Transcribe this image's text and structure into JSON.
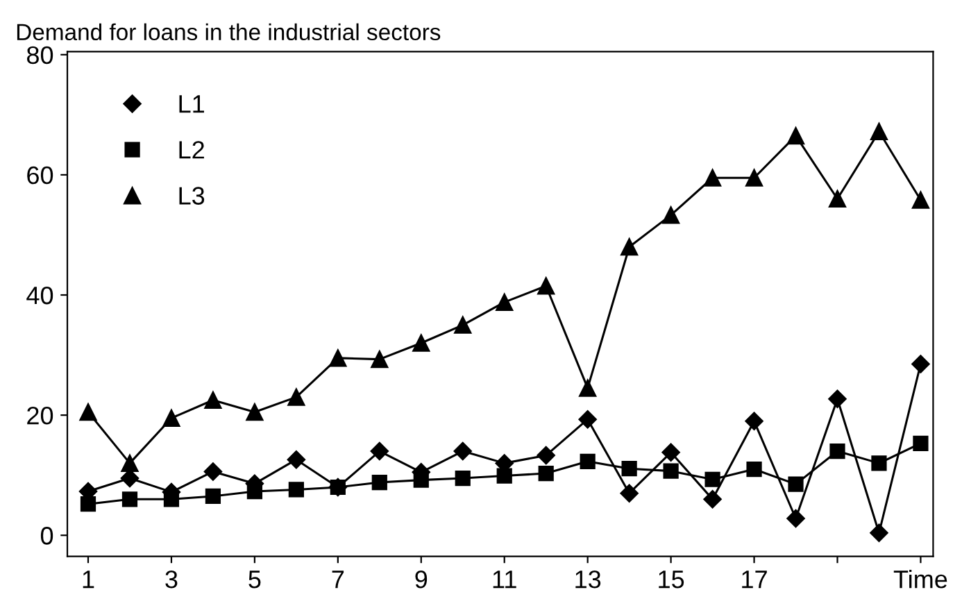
{
  "chart_data": {
    "type": "line",
    "title": "Demand for loans in the industrial sectors",
    "x": [
      1,
      2,
      3,
      4,
      5,
      6,
      7,
      8,
      9,
      10,
      11,
      12,
      13,
      14,
      15,
      16,
      17,
      18,
      19,
      20,
      21
    ],
    "series": [
      {
        "name": "L1",
        "color": "#000000",
        "marker": "diamond",
        "values": [
          7.3,
          9.5,
          7.2,
          10.6,
          8.6,
          12.6,
          8,
          14,
          10.5,
          14,
          12,
          13.3,
          19.3,
          7,
          13.8,
          6,
          19,
          2.8,
          22.7,
          0.4,
          28.5
        ]
      },
      {
        "name": "L2",
        "color": "#000000",
        "marker": "square",
        "values": [
          5.2,
          6,
          6,
          6.5,
          7.3,
          7.6,
          8,
          8.8,
          9.2,
          9.5,
          9.9,
          10.3,
          12.3,
          11.1,
          10.7,
          9.3,
          11,
          8.5,
          14,
          12,
          15.3
        ]
      },
      {
        "name": "L3",
        "color": "#000000",
        "marker": "triangle",
        "values": [
          20.5,
          12,
          19.5,
          22.5,
          20.5,
          23,
          29.5,
          29.3,
          32,
          35,
          38.8,
          41.5,
          24.5,
          48,
          53.3,
          59.5,
          59.5,
          66.5,
          56,
          67.2,
          55.8
        ]
      }
    ],
    "xlim": [
      0.5,
      21.3
    ],
    "ylim": [
      -3.5,
      80.5
    ],
    "xticks": [
      1,
      3,
      5,
      7,
      9,
      11,
      13,
      15,
      17,
      {
        "value": 19,
        "label": null
      },
      {
        "value": 21,
        "label": "Time"
      }
    ],
    "yticks": [
      0,
      20,
      40,
      60,
      80
    ],
    "grid": false,
    "legend": "top left",
    "line_style": "solid"
  }
}
